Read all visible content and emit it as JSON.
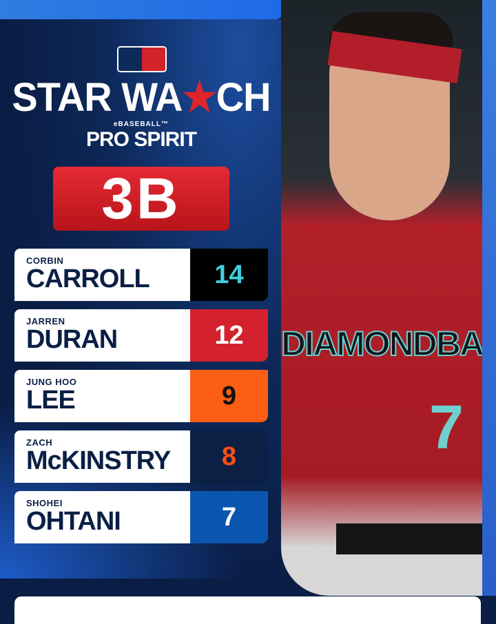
{
  "header": {
    "brand": "MLB",
    "title_part1": "STAR WA",
    "title_part2": "CH",
    "sponsor_small": "eBASEBALL™",
    "sponsor": "PRO SPIRIT",
    "position": "3B"
  },
  "players": [
    {
      "first": "CORBIN",
      "last": "CARROLL",
      "value": "14",
      "bg": "#000000",
      "fg": "#3ed1dc"
    },
    {
      "first": "JARREN",
      "last": "DURAN",
      "value": "12",
      "bg": "#d3222e",
      "fg": "#ffffff"
    },
    {
      "first": "JUNG HOO",
      "last": "LEE",
      "value": "9",
      "bg": "#fb5e14",
      "fg": "#111111"
    },
    {
      "first": "ZACH",
      "last": "McKINSTRY",
      "value": "8",
      "bg": "#0c1f45",
      "fg": "#fb4e12"
    },
    {
      "first": "SHOHEI",
      "last": "OHTANI",
      "value": "7",
      "bg": "#0b57b0",
      "fg": "#ffffff"
    }
  ],
  "photo": {
    "jersey_text": "DIAMONDBACKS",
    "jersey_number": "7"
  },
  "colors": {
    "navy": "#0b1f45",
    "red": "#d3222e",
    "blue": "#1f6ae8"
  }
}
